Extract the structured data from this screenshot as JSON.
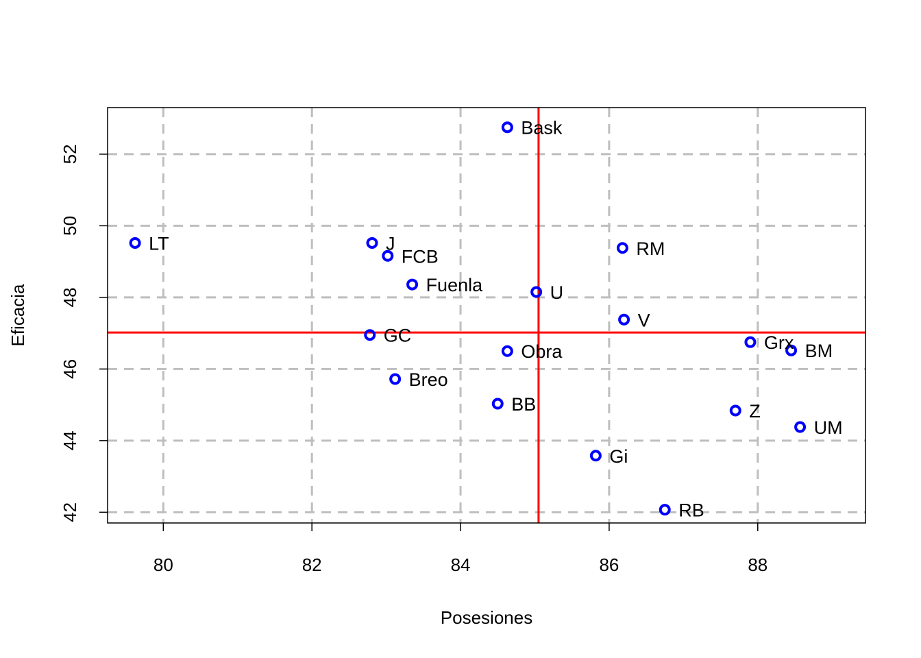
{
  "chart_data": {
    "type": "scatter",
    "title": "",
    "xlabel": "Posesiones",
    "ylabel": "Eficacia",
    "xlim": [
      79.25,
      89.45
    ],
    "ylim": [
      41.7,
      53.3
    ],
    "x_ticks": [
      80,
      82,
      84,
      86,
      88
    ],
    "y_ticks": [
      42,
      44,
      46,
      48,
      50,
      52
    ],
    "grid": true,
    "grid_style": "dashed",
    "reference_lines": {
      "x": 85.05,
      "y": 47.02,
      "color": "#ff0000"
    },
    "point_color": "#0000ff",
    "points": [
      {
        "label": "Bask",
        "x": 84.63,
        "y": 52.75
      },
      {
        "label": "LT",
        "x": 79.62,
        "y": 49.52
      },
      {
        "label": "J",
        "x": 82.81,
        "y": 49.52
      },
      {
        "label": "FCB",
        "x": 83.02,
        "y": 49.16
      },
      {
        "label": "RM",
        "x": 86.18,
        "y": 49.38
      },
      {
        "label": "Fuenla",
        "x": 83.35,
        "y": 48.36
      },
      {
        "label": "U",
        "x": 85.02,
        "y": 48.15
      },
      {
        "label": "V",
        "x": 86.2,
        "y": 47.38
      },
      {
        "label": "GC",
        "x": 82.78,
        "y": 46.95
      },
      {
        "label": "Grx",
        "x": 87.9,
        "y": 46.75
      },
      {
        "label": "BM",
        "x": 88.45,
        "y": 46.52
      },
      {
        "label": "Obra",
        "x": 84.63,
        "y": 46.5
      },
      {
        "label": "Breo",
        "x": 83.12,
        "y": 45.72
      },
      {
        "label": "BB",
        "x": 84.5,
        "y": 45.03
      },
      {
        "label": "Z",
        "x": 87.7,
        "y": 44.84
      },
      {
        "label": "UM",
        "x": 88.57,
        "y": 44.38
      },
      {
        "label": "Gi",
        "x": 85.82,
        "y": 43.58
      },
      {
        "label": "RB",
        "x": 86.75,
        "y": 42.07
      }
    ]
  }
}
